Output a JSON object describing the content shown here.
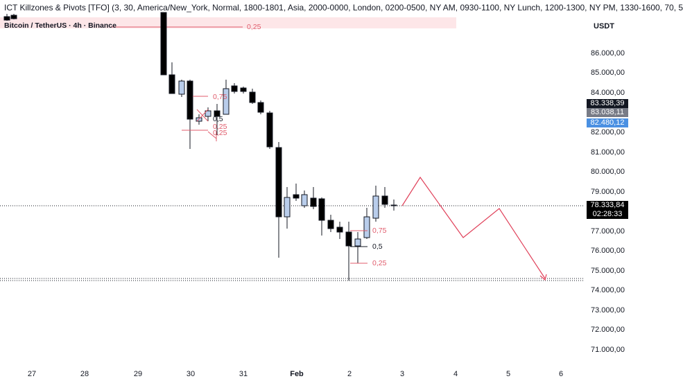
{
  "indicator_header": "ICT Killzones & Pivots [TFO] (3, 30, America/New_York, Normal, 1800-1801, Asia, 2000-0000, London, 0200-0500, NY AM, 0930-1100, NY Lunch, 1200-1300, NY PM, 1330-1600, 70, 5",
  "symbol_line": "Bitcoin / TetherUS · 4h · Binance",
  "unit": "USDT",
  "price_axis": {
    "labels": [
      "86.000,00",
      "85.000,00",
      "84.000,00",
      "82.000,00",
      "81.000,00",
      "80.000,00",
      "79.000,00",
      "77.000,00",
      "76.000,00",
      "75.000,00",
      "74.000,00",
      "73.000,00",
      "72.000,00",
      "71.000,00"
    ]
  },
  "badges": {
    "b1": "83.338,39",
    "b2": "83.038,11",
    "b3": "82.480,12",
    "last_price": "78.333,84",
    "countdown": "02:28:33"
  },
  "date_axis": [
    "27",
    "28",
    "29",
    "30",
    "31",
    "Feb",
    "2",
    "3",
    "4",
    "5",
    "6"
  ],
  "levels": {
    "top_zone": "0,25",
    "upper_075": "0,75",
    "upper_05": "0,5",
    "upper_025a": "0,25",
    "upper_025b": "0,25",
    "lower_075": "0,75",
    "lower_05": "0,5",
    "lower_025": "0,25"
  },
  "colors": {
    "bear": "#000000",
    "bull": "#b9cdeb",
    "fib": "#e05b6b",
    "badge_gray": "#787b86",
    "badge_blue": "#4a90e2",
    "projection": "#e0415a"
  }
}
